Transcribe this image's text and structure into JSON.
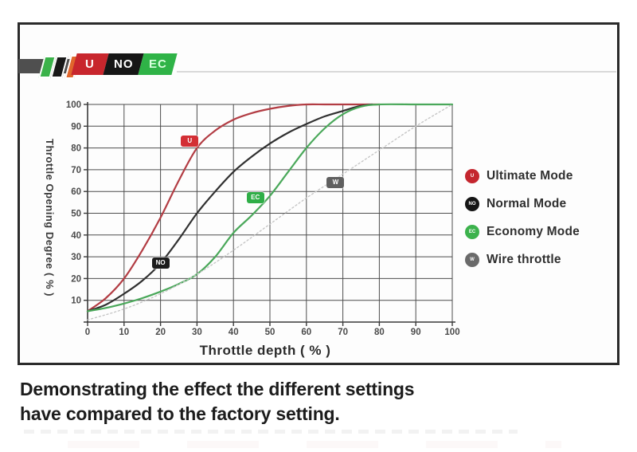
{
  "logo": {
    "badges": [
      {
        "label": "U",
        "color": "#c8262d"
      },
      {
        "label": "NO",
        "color": "#161616"
      },
      {
        "label": "EC",
        "color": "#2fb347"
      }
    ]
  },
  "chart_data": {
    "type": "line",
    "title": "",
    "xlabel": "Throttle depth ( % )",
    "ylabel": "Throttle Opening Degree ( % )",
    "xlim": [
      0,
      100
    ],
    "ylim": [
      0,
      100
    ],
    "grid": true,
    "legend_position": "right-outside",
    "x_ticks": [
      0,
      10,
      20,
      30,
      40,
      50,
      60,
      70,
      80,
      90,
      100
    ],
    "y_ticks": [
      10,
      20,
      30,
      40,
      50,
      60,
      70,
      80,
      90,
      100
    ],
    "series": [
      {
        "name": "Ultimate Mode",
        "color": "#b23c43",
        "style": "solid",
        "x": [
          0,
          5,
          10,
          15,
          20,
          25,
          30,
          35,
          40,
          45,
          50,
          55,
          60,
          65,
          70,
          75,
          80
        ],
        "y": [
          5,
          11,
          20,
          33,
          48,
          65,
          80,
          88,
          93,
          96,
          98,
          99.3,
          100,
          100,
          100,
          100,
          100
        ]
      },
      {
        "name": "Normal Mode",
        "color": "#303030",
        "style": "solid",
        "x": [
          0,
          5,
          10,
          15,
          20,
          25,
          30,
          35,
          40,
          45,
          50,
          55,
          60,
          65,
          70,
          74,
          78
        ],
        "y": [
          5,
          8,
          13,
          19,
          27,
          38,
          50,
          60,
          69,
          76,
          82,
          87,
          91,
          94.5,
          97,
          99,
          100
        ]
      },
      {
        "name": "Economy Mode",
        "color": "#4aa85a",
        "style": "solid",
        "x": [
          0,
          5,
          10,
          15,
          20,
          25,
          30,
          35,
          40,
          45,
          50,
          55,
          60,
          65,
          70,
          75,
          80,
          90,
          100
        ],
        "y": [
          5,
          6.5,
          8.5,
          11,
          14,
          17.5,
          22,
          30,
          41,
          49,
          58,
          69,
          80,
          89,
          95.5,
          99,
          100,
          100,
          100
        ]
      },
      {
        "name": "Wire throttle",
        "color": "#c6c6c6",
        "style": "dotted",
        "x": [
          0,
          10,
          20,
          30,
          40,
          50,
          60,
          70,
          80,
          90,
          100
        ],
        "y": [
          1,
          6,
          13,
          22,
          33,
          45,
          57,
          68,
          79,
          90,
          100
        ]
      }
    ],
    "annotations": [
      {
        "label": "U",
        "x": 28,
        "y": 83,
        "bg": "#d32f35"
      },
      {
        "label": "NO",
        "x": 20,
        "y": 27,
        "bg": "#1d1d1d"
      },
      {
        "label": "EC",
        "x": 46,
        "y": 57,
        "bg": "#2fae47"
      },
      {
        "label": "W",
        "x": 68,
        "y": 64,
        "bg": "#5f5f5f"
      }
    ]
  },
  "legend": {
    "items": [
      {
        "letter": "U",
        "dot": "#c4262e",
        "label": "Ultimate Mode"
      },
      {
        "letter": "NO",
        "dot": "#151515",
        "label": "Normal Mode"
      },
      {
        "letter": "EC",
        "dot": "#3cb24c",
        "label": "Economy Mode"
      },
      {
        "letter": "W",
        "dot": "#6a6a6a",
        "label": "Wire throttle"
      }
    ]
  },
  "caption": {
    "line1": "Demonstrating the effect the different settings",
    "line2": "have compared to the factory setting."
  }
}
